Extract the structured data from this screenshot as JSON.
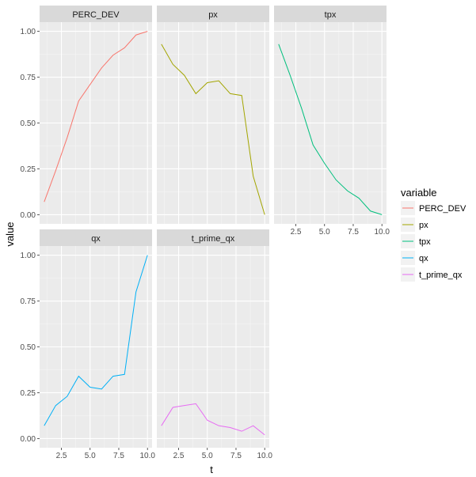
{
  "chart_data": {
    "type": "line",
    "facet_layout": "2 rows x 3 columns, shared axes",
    "xlabel": "t",
    "ylabel": "value",
    "xlim": [
      0.6,
      10.4
    ],
    "ylim": [
      -0.05,
      1.05
    ],
    "x_ticks": [
      "2.5",
      "5.0",
      "7.5",
      "10.0"
    ],
    "x_tick_values": [
      2.5,
      5.0,
      7.5,
      10.0
    ],
    "y_ticks": [
      "0.00",
      "0.25",
      "0.50",
      "0.75",
      "1.00"
    ],
    "y_tick_values": [
      0,
      0.25,
      0.5,
      0.75,
      1.0
    ],
    "grid": true,
    "legend": {
      "title": "variable",
      "position": "right",
      "entries": [
        "PERC_DEV",
        "px",
        "tpx",
        "qx",
        "t_prime_qx"
      ]
    },
    "x": [
      1,
      2,
      3,
      4,
      5,
      6,
      7,
      8,
      9,
      10
    ],
    "series": [
      {
        "name": "PERC_DEV",
        "color": "#F8766D",
        "values": [
          0.07,
          0.24,
          0.42,
          0.62,
          0.71,
          0.8,
          0.87,
          0.91,
          0.98,
          1.0
        ]
      },
      {
        "name": "px",
        "color": "#A3A500",
        "values": [
          0.93,
          0.82,
          0.76,
          0.66,
          0.72,
          0.73,
          0.66,
          0.65,
          0.21,
          0.0
        ]
      },
      {
        "name": "tpx",
        "color": "#00BF7D",
        "values": [
          0.93,
          0.76,
          0.58,
          0.38,
          0.28,
          0.19,
          0.13,
          0.09,
          0.02,
          0.0
        ]
      },
      {
        "name": "qx",
        "color": "#00B0F6",
        "values": [
          0.07,
          0.18,
          0.23,
          0.34,
          0.28,
          0.27,
          0.34,
          0.35,
          0.8,
          1.0
        ]
      },
      {
        "name": "t_prime_qx",
        "color": "#E76BF3",
        "values": [
          0.07,
          0.17,
          0.18,
          0.19,
          0.1,
          0.07,
          0.06,
          0.04,
          0.07,
          0.02
        ]
      }
    ]
  }
}
